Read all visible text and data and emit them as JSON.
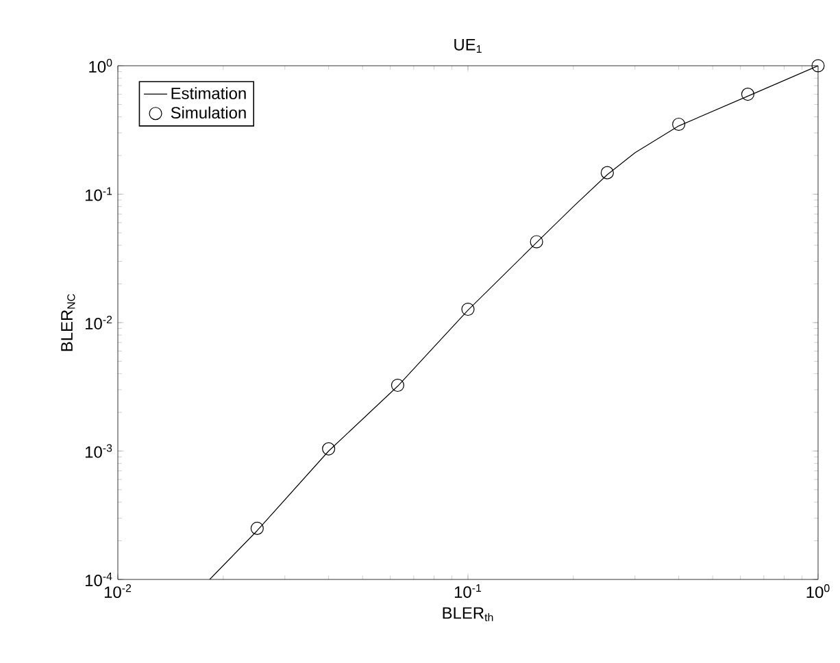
{
  "chart_data": {
    "type": "line",
    "title": "UE$_{1}$",
    "xlabel": "BLER$_{th}$",
    "ylabel": "BLER$_{NC}$",
    "log": "xy",
    "grid": false,
    "legend": "top left",
    "xlim": [
      0.01,
      1
    ],
    "ylim": [
      0.0001,
      1
    ],
    "xticks": [
      {
        "value": 0.01,
        "label": "10$^{-2}$"
      },
      {
        "value": 0.1,
        "label": "10$^{-1}$"
      },
      {
        "value": 1,
        "label": "10$^{0}$"
      }
    ],
    "yticks": [
      {
        "value": 0.0001,
        "label": "10$^{-4}$"
      },
      {
        "value": 0.001,
        "label": "10$^{-3}$"
      },
      {
        "value": 0.01,
        "label": "10$^{-2}$"
      },
      {
        "value": 0.1,
        "label": "10$^{-1}$"
      },
      {
        "value": 1,
        "label": "10$^{0}$"
      }
    ],
    "series": [
      {
        "name": "Estimation",
        "color": "#000000",
        "marker": "none",
        "line_style": "solid",
        "x": [
          0.0183,
          0.025,
          0.04,
          0.063,
          0.1,
          0.157,
          0.2,
          0.25,
          0.3,
          0.4,
          0.63,
          1
        ],
        "values": [
          0.0001,
          0.00024,
          0.001,
          0.0032,
          0.0125,
          0.042,
          0.08,
          0.142,
          0.21,
          0.34,
          0.58,
          1
        ]
      },
      {
        "name": "Simulation",
        "type": "scatter",
        "color": "#000000",
        "marker": "circle",
        "x": [
          0.025,
          0.04,
          0.063,
          0.1,
          0.157,
          0.25,
          0.4,
          0.63,
          1
        ],
        "values": [
          0.00025,
          0.00104,
          0.00325,
          0.0127,
          0.0426,
          0.147,
          0.35,
          0.6,
          1
        ]
      }
    ]
  }
}
